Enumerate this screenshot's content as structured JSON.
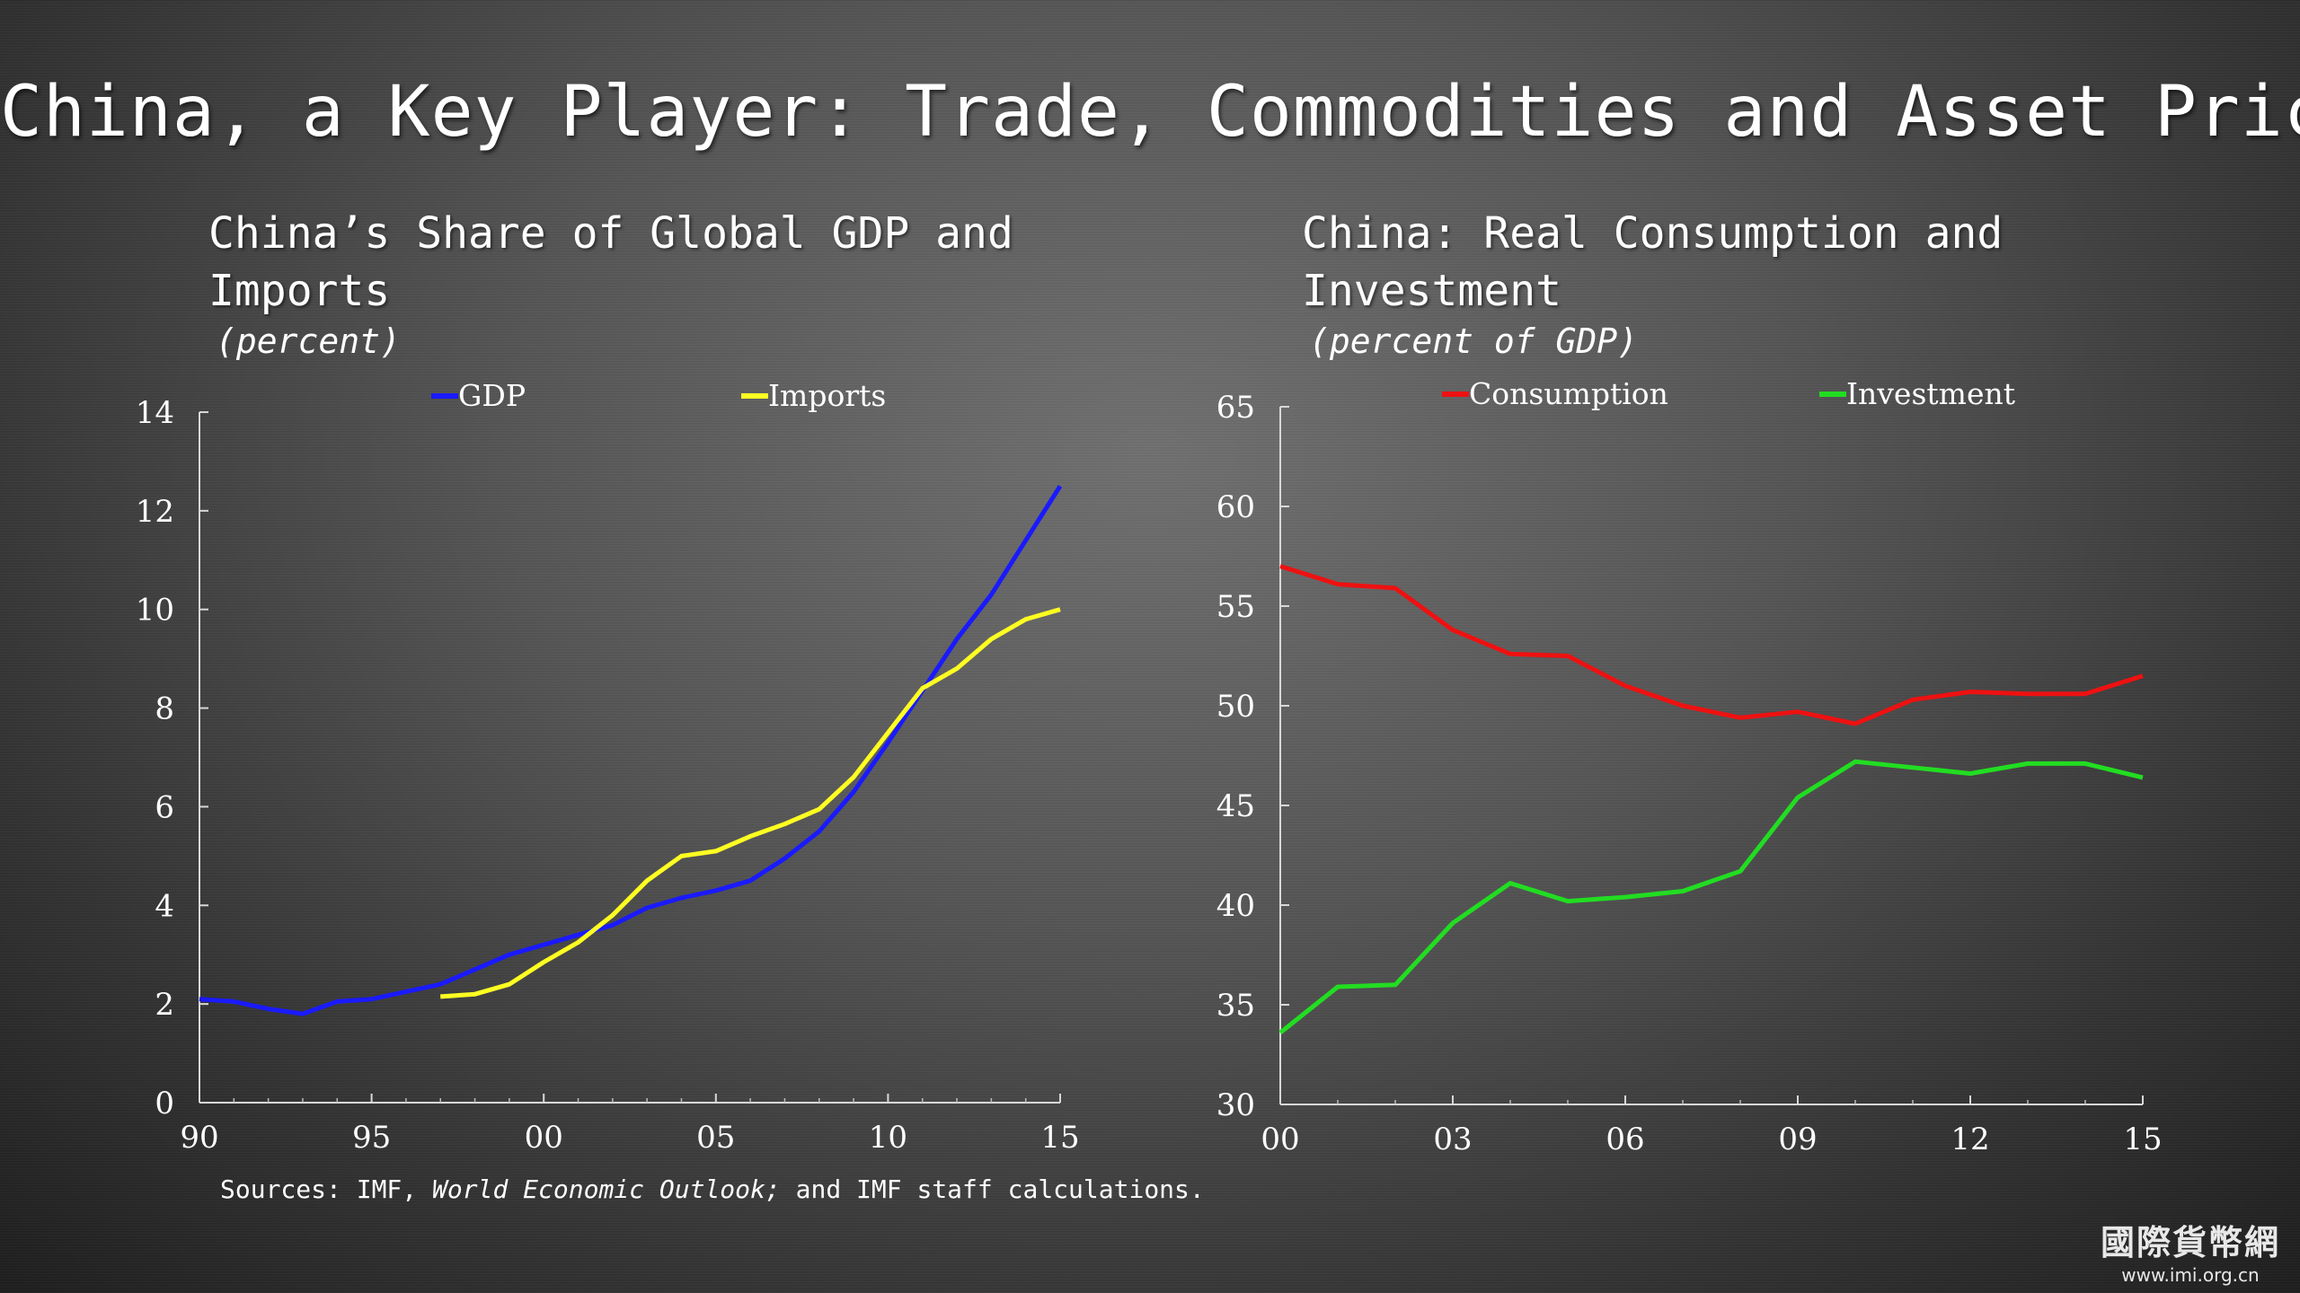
{
  "slide": {
    "title": "China, a Key Player: Trade, Commodities and Asset Prices",
    "sources_prefix": "Sources: IMF, ",
    "sources_italic": "World Economic Outlook;",
    "sources_suffix": " and IMF staff calculations.",
    "watermark": "國際貨幣網",
    "watermark_url": "www.imi.org.cn"
  },
  "chart_data": [
    {
      "type": "line",
      "title": "China’s Share of Global GDP and\nImports",
      "subtitle": "(percent)",
      "ylim": [
        0,
        14
      ],
      "yticks": [
        0,
        2,
        4,
        6,
        8,
        10,
        12,
        14
      ],
      "xlim": [
        1990,
        2015
      ],
      "xticks": [
        1990,
        1995,
        2000,
        2005,
        2010,
        2015
      ],
      "xtick_labels": [
        "90",
        "95",
        "00",
        "05",
        "10",
        "15"
      ],
      "legend_position": "top",
      "series": [
        {
          "name": "GDP",
          "color": "#1a1aff",
          "x": [
            1990,
            1991,
            1992,
            1993,
            1994,
            1995,
            1996,
            1997,
            1998,
            1999,
            2000,
            2001,
            2002,
            2003,
            2004,
            2005,
            2006,
            2007,
            2008,
            2009,
            2010,
            2011,
            2012,
            2013,
            2014,
            2015
          ],
          "y": [
            2.1,
            2.05,
            1.9,
            1.8,
            2.05,
            2.1,
            2.25,
            2.4,
            2.7,
            3.0,
            3.2,
            3.4,
            3.6,
            3.95,
            4.15,
            4.3,
            4.5,
            4.95,
            5.5,
            6.3,
            7.3,
            8.35,
            9.4,
            10.3,
            11.4,
            12.5
          ]
        },
        {
          "name": "Imports",
          "color": "#ffff22",
          "x": [
            1997,
            1998,
            1999,
            2000,
            2001,
            2002,
            2003,
            2004,
            2005,
            2006,
            2007,
            2008,
            2009,
            2010,
            2011,
            2012,
            2013,
            2014,
            2015
          ],
          "y": [
            2.15,
            2.2,
            2.4,
            2.85,
            3.25,
            3.8,
            4.5,
            5.0,
            5.1,
            5.4,
            5.65,
            5.95,
            6.6,
            7.5,
            8.4,
            8.8,
            9.4,
            9.8,
            10.0
          ]
        }
      ]
    },
    {
      "type": "line",
      "title": "China: Real Consumption and\nInvestment",
      "subtitle": "(percent of GDP)",
      "ylim": [
        30,
        65
      ],
      "yticks": [
        30,
        35,
        40,
        45,
        50,
        55,
        60,
        65
      ],
      "xlim": [
        2000,
        2015
      ],
      "xticks": [
        2000,
        2003,
        2006,
        2009,
        2012,
        2015
      ],
      "xtick_labels": [
        "00",
        "03",
        "06",
        "09",
        "12",
        "15"
      ],
      "legend_position": "top",
      "series": [
        {
          "name": "Consumption",
          "color": "#ee1111",
          "x": [
            2000,
            2001,
            2002,
            2003,
            2004,
            2005,
            2006,
            2007,
            2008,
            2009,
            2010,
            2011,
            2012,
            2013,
            2014,
            2015
          ],
          "y": [
            57.0,
            56.1,
            55.9,
            53.8,
            52.6,
            52.5,
            51.0,
            50.0,
            49.4,
            49.7,
            49.1,
            50.3,
            50.7,
            50.6,
            50.6,
            51.5
          ]
        },
        {
          "name": "Investment",
          "color": "#22dd22",
          "x": [
            2000,
            2001,
            2002,
            2003,
            2004,
            2005,
            2006,
            2007,
            2008,
            2009,
            2010,
            2011,
            2012,
            2013,
            2014,
            2015
          ],
          "y": [
            33.6,
            35.9,
            36.0,
            39.1,
            41.1,
            40.2,
            40.4,
            40.7,
            41.7,
            45.4,
            47.2,
            46.9,
            46.6,
            47.1,
            47.1,
            46.4
          ]
        }
      ]
    }
  ]
}
